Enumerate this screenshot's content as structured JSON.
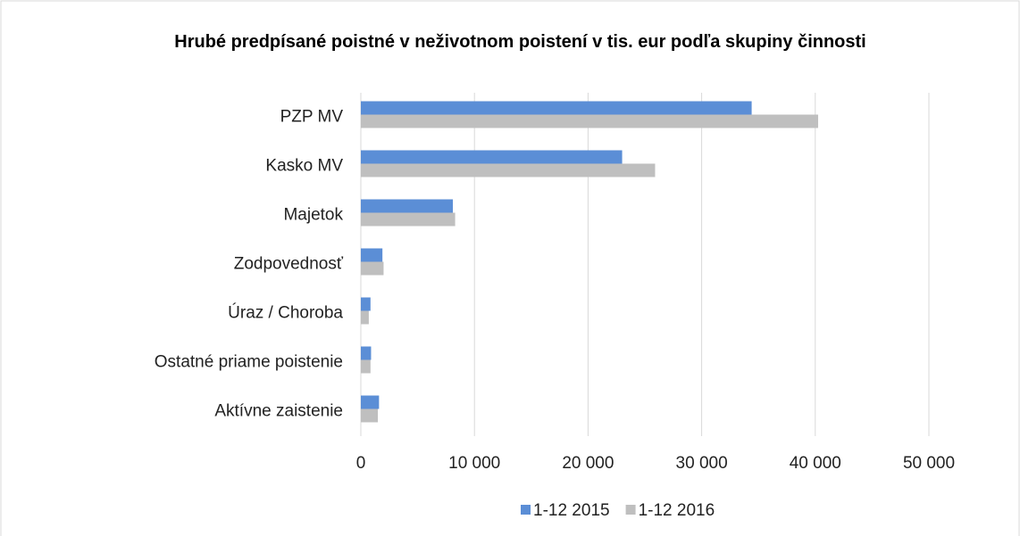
{
  "chart_data": {
    "type": "hbar",
    "title": "Hrubé predpísané poistné v neživotnom poistení v tis. eur podľa skupiny činnosti",
    "categories": [
      "PZP MV",
      "Kasko MV",
      "Majetok",
      "Zodpovednosť",
      "Úraz / Choroba",
      "Ostatné priame poistenie",
      "Aktívne zaistenie"
    ],
    "series": [
      {
        "name": "1-12 2015",
        "color": "#5b8ed6",
        "values": [
          34400,
          23000,
          8100,
          1900,
          850,
          900,
          1600
        ]
      },
      {
        "name": "1-12 2016",
        "color": "#bfbfbf",
        "values": [
          40250,
          25900,
          8300,
          2000,
          700,
          850,
          1500
        ]
      }
    ],
    "xlim": [
      0,
      50000
    ],
    "xticks": [
      0,
      {
        "value": 10000,
        "label": "10 000"
      },
      {
        "value": 20000,
        "label": "20 000"
      },
      {
        "value": 30000,
        "label": "30 000"
      },
      {
        "value": 40000,
        "label": "40 000"
      },
      {
        "value": 50000,
        "label": "50 000"
      }
    ],
    "grid": true,
    "legend": "bottom"
  }
}
